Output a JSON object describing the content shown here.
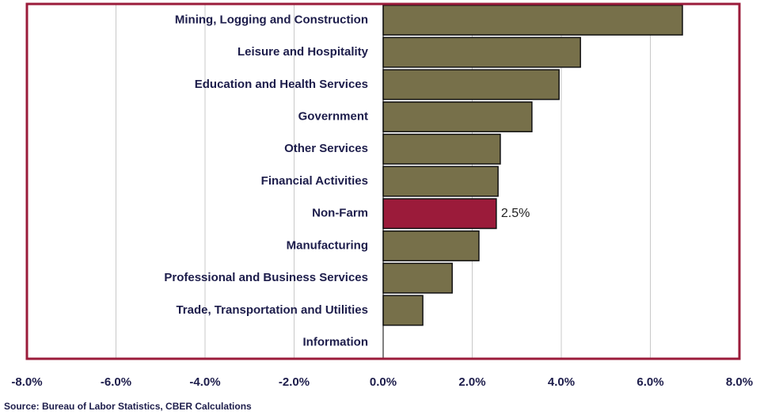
{
  "chart_data": {
    "type": "hbar",
    "categories": [
      "Mining, Logging and Construction",
      "Leisure and Hospitality",
      "Education and Health Services",
      "Government",
      "Other Services",
      "Financial Activities",
      "Non-Farm",
      "Manufacturing",
      "Professional and Business Services",
      "Trade, Transportation and Utilities",
      "Information"
    ],
    "values": [
      6.72,
      4.43,
      3.95,
      3.34,
      2.63,
      2.58,
      2.54,
      2.15,
      1.55,
      0.89,
      0
    ],
    "value_labels": [
      null,
      null,
      null,
      null,
      null,
      null,
      "2.5%",
      null,
      null,
      null,
      null
    ],
    "colors": [
      "#77704a",
      "#77704a",
      "#77704a",
      "#77704a",
      "#77704a",
      "#77704a",
      "#9b1b3a",
      "#77704a",
      "#77704a",
      "#77704a",
      "#77704a"
    ],
    "xlim": [
      -8,
      8
    ],
    "xticks": [
      {
        "value": -8,
        "label": "-8.0%"
      },
      {
        "value": -6,
        "label": "-6.0%"
      },
      {
        "value": -4,
        "label": "-4.0%"
      },
      {
        "value": -2,
        "label": "-2.0%"
      },
      {
        "value": 0,
        "label": "0.0%"
      },
      {
        "value": 2,
        "label": "2.0%"
      },
      {
        "value": 4,
        "label": "4.0%"
      },
      {
        "value": 6,
        "label": "6.0%"
      },
      {
        "value": 8,
        "label": "8.0%"
      }
    ],
    "grid": true,
    "source": "Source: Bureau of Labor Statistics, CBER Calculations"
  }
}
